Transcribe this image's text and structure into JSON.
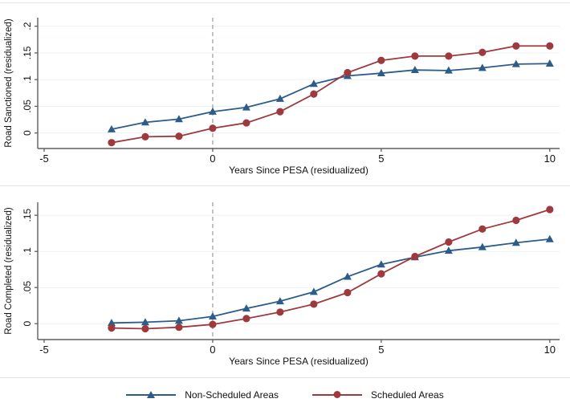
{
  "colors": {
    "background": "#ffffff",
    "grid": "#e9f2f1",
    "axis": "#5f5f5f",
    "vline": "#a3a3a3",
    "text": "#111111",
    "separator": "#e3e3e3",
    "non_scheduled_blue": "#2b5c8a",
    "scheduled_red": "#9e3a3e"
  },
  "chart_data": [
    {
      "type": "line",
      "title": "",
      "xlabel": "Years Since PESA (residualized)",
      "ylabel": "Road Sanctioned (residualized)",
      "x": [
        -3,
        -2,
        -1,
        0,
        1,
        2,
        3,
        4,
        5,
        6,
        7,
        8,
        9,
        10
      ],
      "xlim": [
        -5.19,
        10.29
      ],
      "ylim": [
        -0.029,
        0.216
      ],
      "xticks": {
        "values": [
          -5,
          0,
          5,
          10
        ],
        "labels": [
          "-5",
          "0",
          "5",
          "10"
        ]
      },
      "yticks": {
        "values": [
          0,
          0.05,
          0.1,
          0.15,
          0.2
        ],
        "labels": [
          "0",
          ".05",
          ".1",
          ".15",
          ".2"
        ]
      },
      "grid": true,
      "vline_x": 0,
      "legend_position": "bottom-center",
      "series": [
        {
          "name": "Non-Scheduled Areas",
          "color": "#2b5c8a",
          "marker": "triangle",
          "values": [
            0.007,
            0.02,
            0.026,
            0.04,
            0.048,
            0.064,
            0.092,
            0.107,
            0.112,
            0.118,
            0.117,
            0.122,
            0.129,
            0.13
          ]
        },
        {
          "name": "Scheduled Areas",
          "color": "#9e3a3e",
          "marker": "circle",
          "values": [
            -0.018,
            -0.007,
            -0.006,
            0.009,
            0.019,
            0.04,
            0.073,
            0.113,
            0.136,
            0.144,
            0.144,
            0.151,
            0.163,
            0.163
          ]
        }
      ]
    },
    {
      "type": "line",
      "title": "",
      "xlabel": "Years Since PESA (residualized)",
      "ylabel": "Road Completed (residualized)",
      "x": [
        -3,
        -2,
        -1,
        0,
        1,
        2,
        3,
        4,
        5,
        6,
        7,
        8,
        9,
        10
      ],
      "xlim": [
        -5.19,
        10.29
      ],
      "ylim": [
        -0.022,
        0.168
      ],
      "xticks": {
        "values": [
          -5,
          0,
          5,
          10
        ],
        "labels": [
          "-5",
          "0",
          "5",
          "10"
        ]
      },
      "yticks": {
        "values": [
          0,
          0.05,
          0.1,
          0.15
        ],
        "labels": [
          "0",
          ".05",
          ".1",
          ".15"
        ]
      },
      "grid": true,
      "vline_x": 0,
      "legend_position": "bottom-center",
      "series": [
        {
          "name": "Non-Scheduled Areas",
          "color": "#2b5c8a",
          "marker": "triangle",
          "values": [
            0.001,
            0.002,
            0.004,
            0.01,
            0.021,
            0.031,
            0.044,
            0.065,
            0.082,
            0.092,
            0.101,
            0.106,
            0.112,
            0.117
          ]
        },
        {
          "name": "Scheduled Areas",
          "color": "#9e3a3e",
          "marker": "circle",
          "values": [
            -0.006,
            -0.007,
            -0.005,
            -0.001,
            0.007,
            0.016,
            0.027,
            0.043,
            0.069,
            0.093,
            0.113,
            0.131,
            0.143,
            0.158
          ]
        }
      ]
    }
  ]
}
